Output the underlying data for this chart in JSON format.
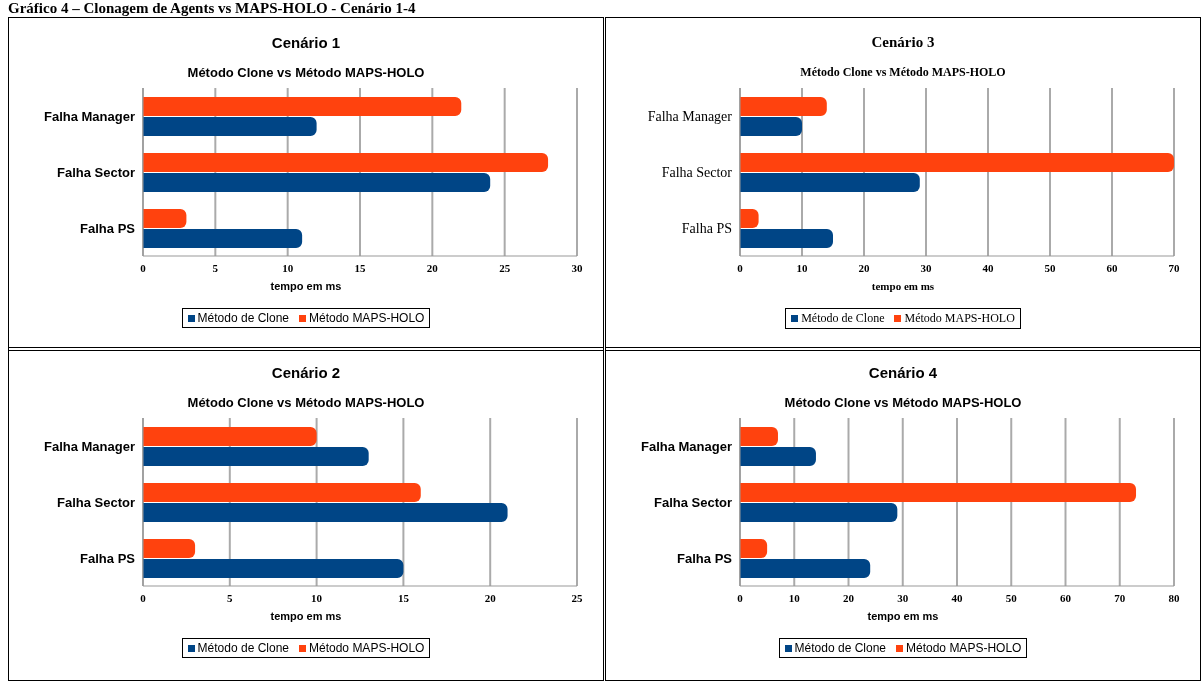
{
  "chart_data": [
    {
      "type": "bar",
      "orientation": "horizontal",
      "title": "Cenário 1",
      "subtitle": "Método Clone vs Método MAPS-HOLO",
      "xlabel": "tempo em ms",
      "annotations": [
        "Gráfico 4 – Clonagem de Agents vs MAPS-HOLO - Cenário 1-4"
      ],
      "categories": [
        "Falha Manager",
        "Falha Sector",
        "Falha PS"
      ],
      "series": [
        {
          "name": "Método de Clone",
          "color": "#004586",
          "values": [
            12,
            24,
            11
          ]
        },
        {
          "name": "Método MAPS-HOLO",
          "color": "#ff420e",
          "values": [
            22,
            28,
            3
          ]
        }
      ],
      "xlim": [
        0,
        30
      ],
      "xticks": [
        0,
        5,
        10,
        15,
        20,
        25,
        30
      ],
      "grid": "x",
      "legend": "bottom"
    },
    {
      "type": "bar",
      "orientation": "horizontal",
      "title": "Cenário 3",
      "subtitle": "Método Clone vs Método MAPS-HOLO",
      "xlabel": "tempo em ms",
      "categories": [
        "Falha Manager",
        "Falha Sector",
        "Falha PS"
      ],
      "series": [
        {
          "name": "Método de Clone",
          "color": "#004586",
          "values": [
            10,
            29,
            15
          ]
        },
        {
          "name": "Método MAPS-HOLO",
          "color": "#ff420e",
          "values": [
            14,
            70,
            3
          ]
        }
      ],
      "xlim": [
        0,
        70
      ],
      "xticks": [
        0,
        10,
        20,
        30,
        40,
        50,
        60,
        70
      ],
      "grid": "x",
      "legend": "bottom"
    },
    {
      "type": "bar",
      "orientation": "horizontal",
      "title": "Cenário 2",
      "subtitle": "Método Clone vs Método MAPS-HOLO",
      "xlabel": "tempo em ms",
      "categories": [
        "Falha Manager",
        "Falha Sector",
        "Falha PS"
      ],
      "series": [
        {
          "name": "Método de Clone",
          "color": "#004586",
          "values": [
            13,
            21,
            15
          ]
        },
        {
          "name": "Método MAPS-HOLO",
          "color": "#ff420e",
          "values": [
            10,
            16,
            3
          ]
        }
      ],
      "xlim": [
        0,
        25
      ],
      "xticks": [
        0,
        5,
        10,
        15,
        20,
        25
      ],
      "grid": "x",
      "legend": "bottom"
    },
    {
      "type": "bar",
      "orientation": "horizontal",
      "title": "Cenário 4",
      "subtitle": "Método Clone vs Método MAPS-HOLO",
      "xlabel": "tempo em ms",
      "categories": [
        "Falha Manager",
        "Falha Sector",
        "Falha PS"
      ],
      "series": [
        {
          "name": "Método de Clone",
          "color": "#004586",
          "values": [
            14,
            29,
            24
          ]
        },
        {
          "name": "Método MAPS-HOLO",
          "color": "#ff420e",
          "values": [
            7,
            73,
            5
          ]
        }
      ],
      "xlim": [
        0,
        80
      ],
      "xticks": [
        0,
        10,
        20,
        30,
        40,
        50,
        60,
        70,
        80
      ],
      "grid": "x",
      "legend": "bottom"
    }
  ]
}
